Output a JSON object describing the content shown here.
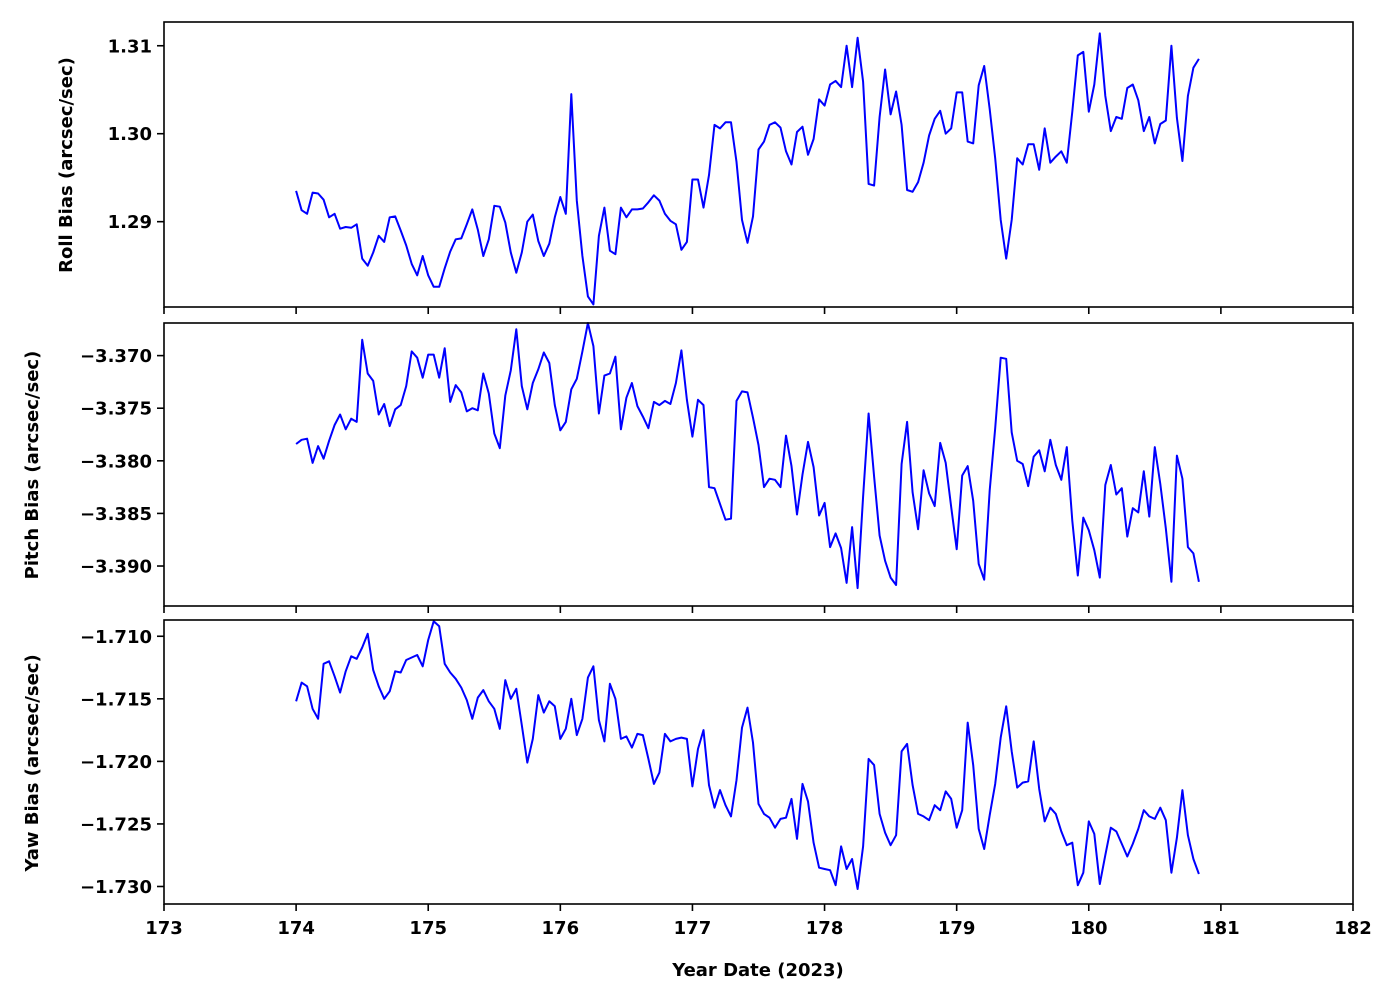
{
  "chart_data": {
    "type": "line",
    "xlabel": "Year Date (2023)",
    "xlim": [
      173,
      182
    ],
    "xticks": [
      173,
      174,
      175,
      176,
      177,
      178,
      179,
      180,
      181,
      182
    ],
    "x_start": 174,
    "x_step": 0.041667,
    "line_color": "#0000ff",
    "panels": [
      {
        "ylabel": "Roll Bias (arcsec/sec)",
        "ylim": [
          1.2803,
          1.3127
        ],
        "yticks": [
          1.29,
          1.3,
          1.31
        ],
        "ytick_labels": [
          "1.29",
          "1.30",
          "1.31"
        ],
        "values": [
          1.2935,
          1.2913,
          1.2909,
          1.2933,
          1.2932,
          1.2925,
          1.2905,
          1.2909,
          1.2892,
          1.2894,
          1.2893,
          1.2897,
          1.2858,
          1.285,
          1.2865,
          1.2884,
          1.2877,
          1.2905,
          1.2906,
          1.289,
          1.2873,
          1.2852,
          1.2839,
          1.2861,
          1.2839,
          1.2826,
          1.2826,
          1.2847,
          1.2866,
          1.288,
          1.2881,
          1.2897,
          1.2914,
          1.2891,
          1.2861,
          1.288,
          1.2918,
          1.2917,
          1.2899,
          1.2865,
          1.2842,
          1.2865,
          1.29,
          1.2908,
          1.2878,
          1.2861,
          1.2875,
          1.2905,
          1.2928,
          1.2909,
          1.3045,
          1.2924,
          1.2861,
          1.2815,
          1.2806,
          1.2884,
          1.2916,
          1.2867,
          1.2863,
          1.2916,
          1.2905,
          1.2914,
          1.2914,
          1.2915,
          1.2922,
          1.293,
          1.2924,
          1.2909,
          1.2901,
          1.2897,
          1.2868,
          1.2877,
          1.2948,
          1.2948,
          1.2916,
          1.2953,
          1.301,
          1.3006,
          1.3013,
          1.3013,
          1.2968,
          1.2902,
          1.2876,
          1.2906,
          1.2982,
          1.2991,
          1.301,
          1.3013,
          1.3007,
          1.298,
          1.2965,
          1.3002,
          1.3008,
          1.2976,
          1.2994,
          1.3039,
          1.3032,
          1.3056,
          1.306,
          1.3053,
          1.31,
          1.3053,
          1.3109,
          1.3059,
          1.2943,
          1.2941,
          1.3019,
          1.3073,
          1.3022,
          1.3048,
          1.301,
          1.2936,
          1.2934,
          1.2945,
          1.2967,
          1.2998,
          1.3017,
          1.3026,
          1.3,
          1.3006,
          1.3047,
          1.3047,
          1.2991,
          1.2989,
          1.3055,
          1.3077,
          1.3028,
          1.2972,
          1.2902,
          1.2858,
          1.2902,
          1.2972,
          1.2965,
          1.2988,
          1.2988,
          1.2959,
          1.3006,
          1.2967,
          1.2974,
          1.298,
          1.2967,
          1.3025,
          1.3089,
          1.3093,
          1.3025,
          1.3056,
          1.3114,
          1.3043,
          1.3003,
          1.3019,
          1.3017,
          1.3052,
          1.3056,
          1.3038,
          1.3003,
          1.3019,
          1.2989,
          1.3011,
          1.3015,
          1.31,
          1.3018,
          1.2969,
          1.3043,
          1.3075,
          1.3085
        ]
      },
      {
        "ylabel": "Pitch Bias (arcsec/sec)",
        "ylim": [
          -3.3938,
          -3.3669
        ],
        "yticks": [
          -3.39,
          -3.385,
          -3.38,
          -3.375,
          -3.37
        ],
        "ytick_labels": [
          "−3.390",
          "−3.385",
          "−3.380",
          "−3.375",
          "−3.370"
        ],
        "values": [
          -3.3784,
          -3.378,
          -3.3779,
          -3.3802,
          -3.3786,
          -3.3798,
          -3.3781,
          -3.3766,
          -3.3756,
          -3.377,
          -3.376,
          -3.3763,
          -3.3685,
          -3.3717,
          -3.3724,
          -3.3756,
          -3.3746,
          -3.3767,
          -3.3751,
          -3.3747,
          -3.3729,
          -3.3696,
          -3.3702,
          -3.3721,
          -3.3699,
          -3.3699,
          -3.3721,
          -3.3693,
          -3.3744,
          -3.3728,
          -3.3735,
          -3.3753,
          -3.375,
          -3.3752,
          -3.3717,
          -3.3736,
          -3.3774,
          -3.3788,
          -3.3738,
          -3.3714,
          -3.3675,
          -3.3729,
          -3.3751,
          -3.3726,
          -3.3713,
          -3.3697,
          -3.3707,
          -3.3747,
          -3.3771,
          -3.3763,
          -3.3732,
          -3.3722,
          -3.3696,
          -3.3669,
          -3.3691,
          -3.3755,
          -3.3719,
          -3.3717,
          -3.3701,
          -3.377,
          -3.374,
          -3.3726,
          -3.3748,
          -3.3758,
          -3.3769,
          -3.3744,
          -3.3747,
          -3.3743,
          -3.3746,
          -3.3726,
          -3.3695,
          -3.3742,
          -3.3777,
          -3.3742,
          -3.3747,
          -3.3825,
          -3.3826,
          -3.3841,
          -3.3856,
          -3.3855,
          -3.3743,
          -3.3734,
          -3.3735,
          -3.3759,
          -3.3785,
          -3.3825,
          -3.3817,
          -3.3818,
          -3.3825,
          -3.3776,
          -3.3805,
          -3.3851,
          -3.3813,
          -3.3782,
          -3.3806,
          -3.3852,
          -3.384,
          -3.3882,
          -3.3869,
          -3.3883,
          -3.3916,
          -3.3863,
          -3.3921,
          -3.3834,
          -3.3755,
          -3.3815,
          -3.3871,
          -3.3895,
          -3.3911,
          -3.3918,
          -3.3803,
          -3.3763,
          -3.383,
          -3.3865,
          -3.3809,
          -3.3831,
          -3.3843,
          -3.3783,
          -3.3802,
          -3.3844,
          -3.3884,
          -3.3814,
          -3.3805,
          -3.3838,
          -3.3898,
          -3.3913,
          -3.3828,
          -3.3769,
          -3.3702,
          -3.3703,
          -3.3773,
          -3.38,
          -3.3803,
          -3.3824,
          -3.3796,
          -3.379,
          -3.381,
          -3.378,
          -3.3804,
          -3.3818,
          -3.3787,
          -3.3857,
          -3.3909,
          -3.3854,
          -3.3866,
          -3.3885,
          -3.3911,
          -3.3823,
          -3.3804,
          -3.3832,
          -3.3826,
          -3.3872,
          -3.3845,
          -3.3849,
          -3.381,
          -3.3853,
          -3.3787,
          -3.3822,
          -3.3864,
          -3.3915,
          -3.3795,
          -3.3817,
          -3.3882,
          -3.3888,
          -3.3915
        ]
      },
      {
        "ylabel": "Yaw Bias (arcsec/sec)",
        "ylim": [
          -1.7314,
          -1.7087
        ],
        "yticks": [
          -1.73,
          -1.725,
          -1.72,
          -1.715,
          -1.71
        ],
        "ytick_labels": [
          "−1.730",
          "−1.725",
          "−1.720",
          "−1.715",
          "−1.710"
        ],
        "values": [
          -1.7152,
          -1.7137,
          -1.714,
          -1.7158,
          -1.7166,
          -1.7122,
          -1.712,
          -1.7132,
          -1.7145,
          -1.7128,
          -1.7116,
          -1.7118,
          -1.7109,
          -1.7098,
          -1.7127,
          -1.714,
          -1.715,
          -1.7144,
          -1.7128,
          -1.7129,
          -1.7119,
          -1.7117,
          -1.7115,
          -1.7124,
          -1.7103,
          -1.7088,
          -1.7092,
          -1.7122,
          -1.7129,
          -1.7134,
          -1.7141,
          -1.7151,
          -1.7166,
          -1.7149,
          -1.7143,
          -1.7152,
          -1.7158,
          -1.7174,
          -1.7135,
          -1.715,
          -1.7142,
          -1.7171,
          -1.7201,
          -1.7182,
          -1.7147,
          -1.7161,
          -1.7152,
          -1.7156,
          -1.7182,
          -1.7174,
          -1.715,
          -1.7179,
          -1.7166,
          -1.7133,
          -1.7124,
          -1.7167,
          -1.7184,
          -1.7138,
          -1.715,
          -1.7182,
          -1.718,
          -1.7189,
          -1.7178,
          -1.7179,
          -1.7198,
          -1.7218,
          -1.7209,
          -1.7178,
          -1.7184,
          -1.7182,
          -1.7181,
          -1.7182,
          -1.722,
          -1.719,
          -1.7175,
          -1.7219,
          -1.7237,
          -1.7223,
          -1.7235,
          -1.7244,
          -1.7215,
          -1.7173,
          -1.7157,
          -1.7185,
          -1.7234,
          -1.7242,
          -1.7245,
          -1.7253,
          -1.7246,
          -1.7245,
          -1.723,
          -1.7262,
          -1.7218,
          -1.7232,
          -1.7265,
          -1.7285,
          -1.7286,
          -1.7287,
          -1.7299,
          -1.7268,
          -1.7286,
          -1.7278,
          -1.7302,
          -1.7268,
          -1.7198,
          -1.7203,
          -1.7242,
          -1.7257,
          -1.7267,
          -1.7259,
          -1.7192,
          -1.7186,
          -1.7219,
          -1.7242,
          -1.7244,
          -1.7247,
          -1.7235,
          -1.7239,
          -1.7224,
          -1.723,
          -1.7253,
          -1.7239,
          -1.7169,
          -1.7203,
          -1.7254,
          -1.727,
          -1.7243,
          -1.7218,
          -1.7181,
          -1.7156,
          -1.7192,
          -1.7221,
          -1.7217,
          -1.7216,
          -1.7184,
          -1.7222,
          -1.7248,
          -1.7237,
          -1.7242,
          -1.7256,
          -1.7267,
          -1.7265,
          -1.7299,
          -1.7289,
          -1.7248,
          -1.7258,
          -1.7298,
          -1.7275,
          -1.7253,
          -1.7256,
          -1.7266,
          -1.7276,
          -1.7266,
          -1.7254,
          -1.7239,
          -1.7244,
          -1.7246,
          -1.7237,
          -1.7247,
          -1.7289,
          -1.7261,
          -1.7223,
          -1.7259,
          -1.7278,
          -1.729
        ]
      }
    ]
  }
}
